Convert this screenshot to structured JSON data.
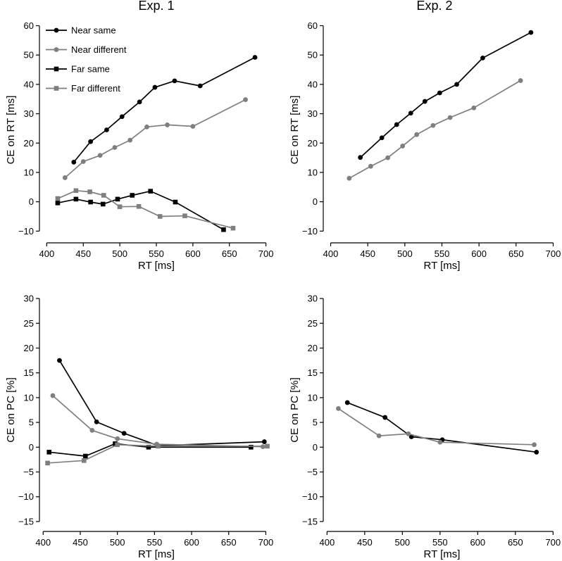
{
  "titles": {
    "exp1": "Exp. 1",
    "exp2": "Exp. 2"
  },
  "legend": [
    {
      "key": "near_same",
      "label": "Near same",
      "color": "#000000",
      "marker": "circle"
    },
    {
      "key": "near_diff",
      "label": "Near different",
      "color": "#7f7f7f",
      "marker": "circle"
    },
    {
      "key": "far_same",
      "label": "Far same",
      "color": "#000000",
      "marker": "square"
    },
    {
      "key": "far_diff",
      "label": "Far different",
      "color": "#7f7f7f",
      "marker": "square"
    }
  ],
  "chart_data": [
    {
      "id": "exp1-rt",
      "type": "line",
      "title": "Exp. 1",
      "xlabel": "RT [ms]",
      "ylabel": "CE on RT [ms]",
      "xlim": [
        390,
        710
      ],
      "ylim": [
        -14,
        63
      ],
      "xticks": [
        400,
        450,
        500,
        550,
        600,
        650,
        700
      ],
      "yticks": [
        -10,
        0,
        10,
        20,
        30,
        40,
        50,
        60
      ],
      "legend_position": "top-left",
      "series": [
        {
          "name": "Near same",
          "color": "#000000",
          "marker": "circle",
          "x": [
            437,
            460,
            482,
            503,
            527,
            548,
            575,
            610,
            685
          ],
          "y": [
            13.5,
            20.5,
            24.5,
            29,
            34,
            39,
            41.2,
            39.5,
            49.2
          ]
        },
        {
          "name": "Near different",
          "color": "#7f7f7f",
          "marker": "circle",
          "x": [
            425,
            450,
            473,
            493,
            514,
            537,
            565,
            600,
            672
          ],
          "y": [
            8.2,
            13.7,
            15.8,
            18.5,
            21,
            25.5,
            26.2,
            25.7,
            34.8
          ]
        },
        {
          "name": "Far same",
          "color": "#000000",
          "marker": "square",
          "x": [
            415,
            440,
            460,
            477,
            497,
            517,
            542,
            576,
            642
          ],
          "y": [
            -0.4,
            0.9,
            -0.1,
            -0.8,
            0.9,
            2.2,
            3.6,
            -0.1,
            -9.5
          ]
        },
        {
          "name": "Far different",
          "color": "#7f7f7f",
          "marker": "square",
          "x": [
            415,
            440,
            459,
            478,
            500,
            526,
            555,
            589,
            655
          ],
          "y": [
            1.1,
            3.8,
            3.4,
            2.2,
            -1.7,
            -1.6,
            -5.0,
            -4.8,
            -9.0
          ]
        }
      ]
    },
    {
      "id": "exp2-rt",
      "type": "line",
      "title": "Exp. 2",
      "xlabel": "RT [ms]",
      "ylabel": "CE on RT [ms]",
      "xlim": [
        390,
        710
      ],
      "ylim": [
        -14,
        63
      ],
      "xticks": [
        400,
        450,
        500,
        550,
        600,
        650,
        700
      ],
      "yticks": [
        -10,
        0,
        10,
        20,
        30,
        40,
        50,
        60
      ],
      "series": [
        {
          "name": "Near same",
          "color": "#000000",
          "marker": "circle",
          "x": [
            440,
            469,
            489,
            508,
            527,
            547,
            570,
            605,
            670
          ],
          "y": [
            15.1,
            21.8,
            26.3,
            30.2,
            34.2,
            37.1,
            40.0,
            49.0,
            57.7
          ]
        },
        {
          "name": "Near different",
          "color": "#7f7f7f",
          "marker": "circle",
          "x": [
            425,
            454,
            477,
            497,
            516,
            538,
            561,
            593,
            656
          ],
          "y": [
            8.0,
            12.1,
            15.0,
            19.0,
            22.9,
            26.0,
            28.7,
            32.0,
            41.3
          ]
        }
      ]
    },
    {
      "id": "exp1-pc",
      "type": "line",
      "title": "",
      "xlabel": "RT [ms]",
      "ylabel": "CE on PC [%]",
      "xlim": [
        395,
        710
      ],
      "ylim": [
        -17,
        32
      ],
      "xticks": [
        400,
        450,
        500,
        550,
        600,
        650,
        700
      ],
      "yticks": [
        -15,
        -10,
        -5,
        0,
        5,
        10,
        15,
        20,
        25,
        30
      ],
      "series": [
        {
          "name": "Near same",
          "color": "#000000",
          "marker": "circle",
          "x": [
            422,
            472,
            509,
            555,
            698
          ],
          "y": [
            17.5,
            5.1,
            2.8,
            0.3,
            1.1
          ]
        },
        {
          "name": "Near different",
          "color": "#7f7f7f",
          "marker": "circle",
          "x": [
            413,
            466,
            500,
            553,
            696
          ],
          "y": [
            10.4,
            3.4,
            1.7,
            0.6,
            0.1
          ]
        },
        {
          "name": "Far same",
          "color": "#000000",
          "marker": "square",
          "x": [
            408,
            457,
            497,
            542,
            680
          ],
          "y": [
            -1.0,
            -1.8,
            0.7,
            0.0,
            0.0
          ]
        },
        {
          "name": "Far different",
          "color": "#7f7f7f",
          "marker": "square",
          "x": [
            406,
            455,
            500,
            555,
            702
          ],
          "y": [
            -3.2,
            -2.7,
            0.5,
            0.2,
            0.2
          ]
        }
      ]
    },
    {
      "id": "exp2-pc",
      "type": "line",
      "title": "",
      "xlabel": "RT [ms]",
      "ylabel": "CE on PC [%]",
      "xlim": [
        395,
        710
      ],
      "ylim": [
        -17,
        32
      ],
      "xticks": [
        400,
        450,
        500,
        550,
        600,
        650,
        700
      ],
      "yticks": [
        -15,
        -10,
        -5,
        0,
        5,
        10,
        15,
        20,
        25,
        30
      ],
      "series": [
        {
          "name": "Near same",
          "color": "#000000",
          "marker": "circle",
          "x": [
            427,
            477,
            512,
            553,
            678
          ],
          "y": [
            9.0,
            6.0,
            2.1,
            1.5,
            -1.0
          ]
        },
        {
          "name": "Near different",
          "color": "#7f7f7f",
          "marker": "circle",
          "x": [
            415,
            469,
            508,
            550,
            675
          ],
          "y": [
            7.8,
            2.3,
            2.7,
            1.0,
            0.5
          ]
        }
      ]
    }
  ]
}
